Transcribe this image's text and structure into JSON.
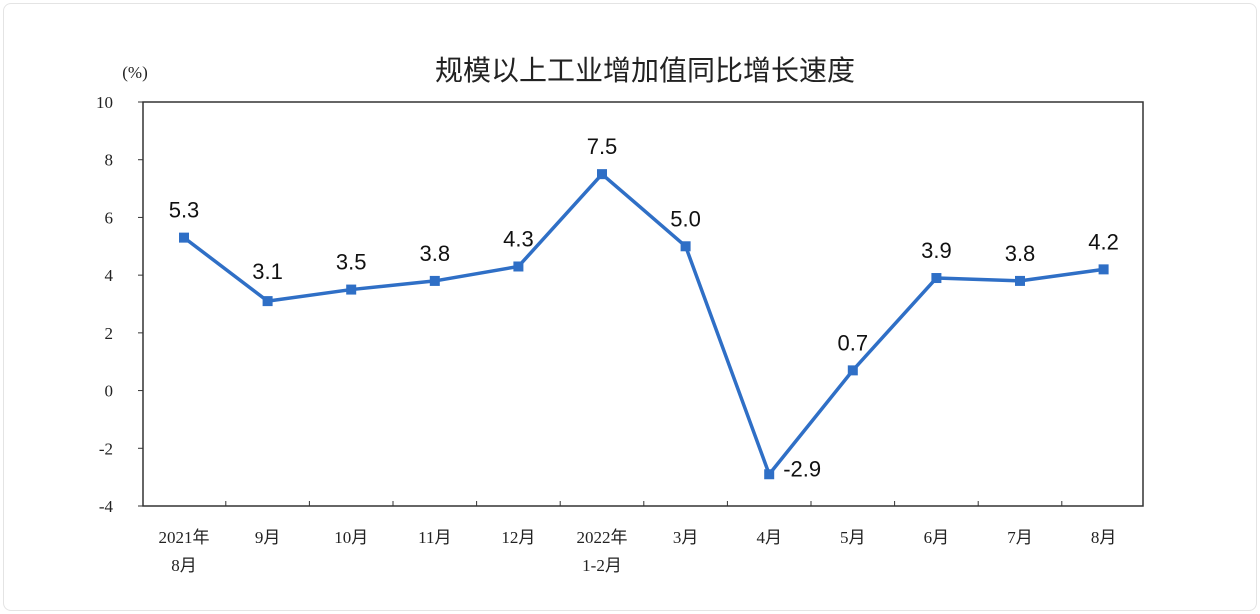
{
  "chart_data": {
    "type": "line",
    "title": "规模以上工业增加值同比增长速度",
    "ylabel": "(%)",
    "xlabel": "",
    "ylim": [
      -4,
      10
    ],
    "yticks": [
      10,
      8,
      6,
      4,
      2,
      0,
      -2,
      -4
    ],
    "grid": false,
    "categories": [
      [
        "2021年",
        "8月"
      ],
      [
        "9月"
      ],
      [
        "10月"
      ],
      [
        "11月"
      ],
      [
        "12月"
      ],
      [
        "2022年",
        "1-2月"
      ],
      [
        "3月"
      ],
      [
        "4月"
      ],
      [
        "5月"
      ],
      [
        "6月"
      ],
      [
        "7月"
      ],
      [
        "8月"
      ]
    ],
    "values": [
      5.3,
      3.1,
      3.5,
      3.8,
      4.3,
      7.5,
      5.0,
      -2.9,
      0.7,
      3.9,
      3.8,
      4.2
    ],
    "data_labels": [
      "5.3",
      "3.1",
      "3.5",
      "3.8",
      "4.3",
      "7.5",
      "5.0",
      "-2.9",
      "0.7",
      "3.9",
      "3.8",
      "4.2"
    ],
    "line_color": "#2f6fc6"
  }
}
